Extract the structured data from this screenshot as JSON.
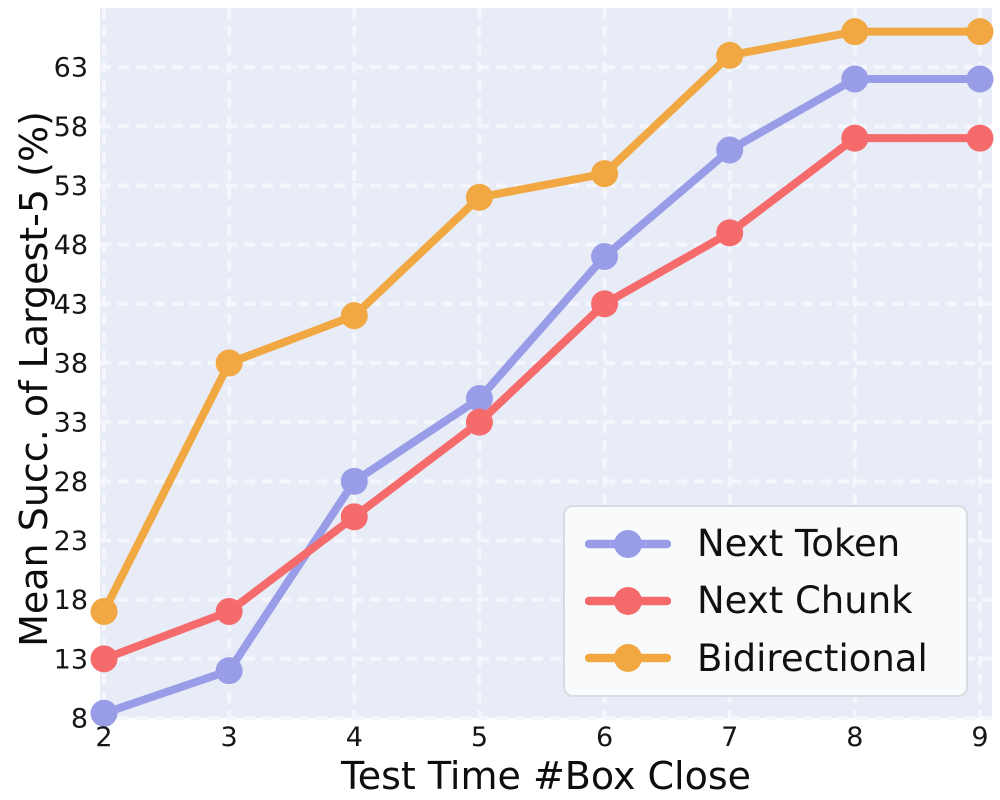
{
  "chart_data": {
    "type": "line",
    "title": "",
    "xlabel": "Test Time #Box Close",
    "ylabel": "Mean Succ. of Largest-5 (%)",
    "x": [
      2,
      3,
      4,
      5,
      6,
      7,
      8,
      9
    ],
    "x_ticks": [
      2,
      3,
      4,
      5,
      6,
      7,
      8,
      9
    ],
    "y_ticks": [
      8,
      13,
      18,
      23,
      28,
      33,
      38,
      43,
      48,
      53,
      58,
      63
    ],
    "xlim": [
      1.968,
      9.096
    ],
    "ylim": [
      8,
      68
    ],
    "grid": true,
    "grid_style": "dashed",
    "legend_position": "lower right",
    "series": [
      {
        "name": "Next Token",
        "color": "#999de8",
        "values": [
          8.4,
          12,
          28,
          35,
          47,
          56,
          62,
          62
        ]
      },
      {
        "name": "Next Chunk",
        "color": "#f56b6b",
        "values": [
          13,
          17,
          25,
          33,
          43,
          49,
          57,
          57
        ]
      },
      {
        "name": "Bidirectional",
        "color": "#f1a843",
        "values": [
          17,
          38,
          42,
          52,
          54,
          64,
          66,
          66
        ]
      }
    ],
    "colors": {
      "plot_bg": "#e8ecf7",
      "grid": "#f4f6fb",
      "tick_text": "#161616",
      "label_text": "#0d0d0d",
      "legend_bg": "#f9fafc",
      "legend_border": "#d8dbe2"
    }
  }
}
